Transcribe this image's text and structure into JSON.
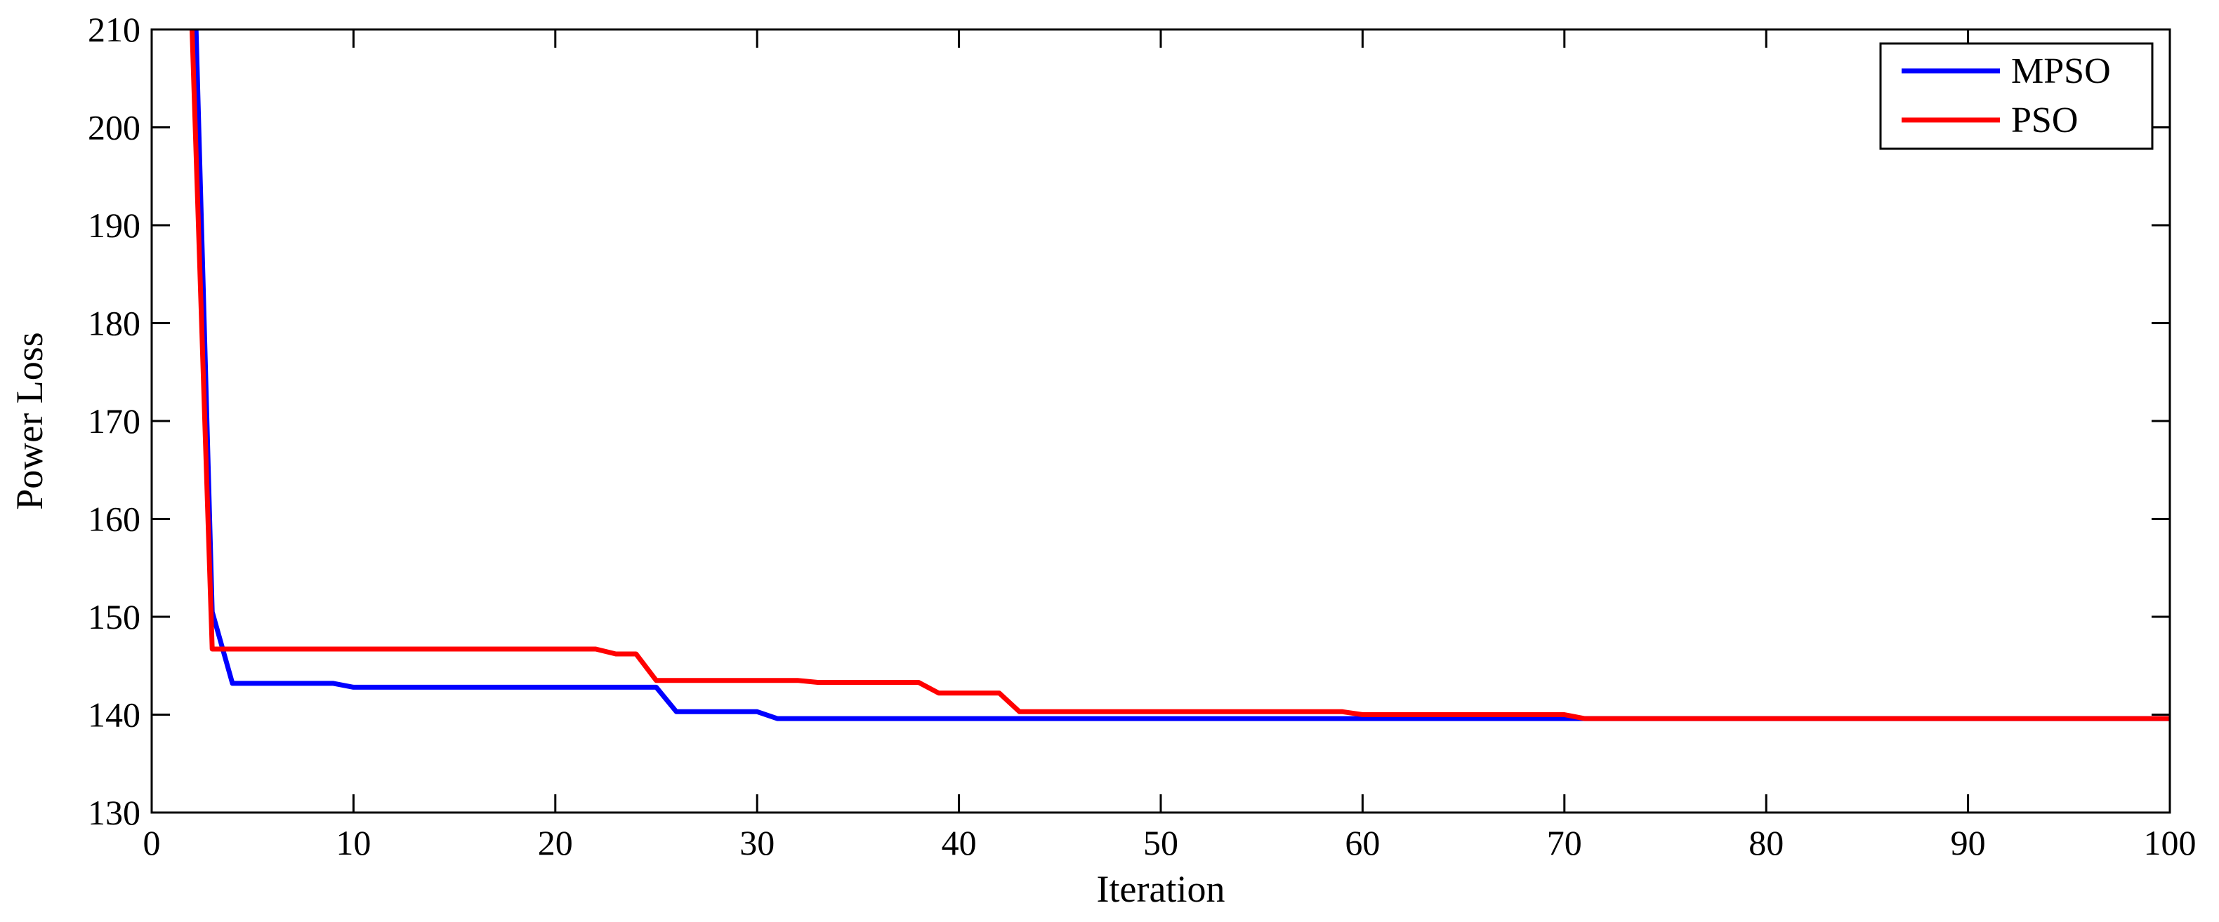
{
  "chart_data": {
    "type": "line",
    "title": "",
    "xlabel": "Iteration",
    "ylabel": "Power Loss",
    "xlim": [
      0,
      100
    ],
    "ylim": [
      130,
      210
    ],
    "xticks": [
      0,
      10,
      20,
      30,
      40,
      50,
      60,
      70,
      80,
      90,
      100
    ],
    "yticks": [
      130,
      140,
      150,
      160,
      170,
      180,
      190,
      200,
      210
    ],
    "grid": false,
    "legend": "top-right",
    "series": [
      {
        "name": "MPSO",
        "color": "#0000ff",
        "x": [
          2.2,
          3,
          4,
          9,
          10,
          25,
          26,
          30,
          31,
          100
        ],
        "y": [
          210,
          150.5,
          143.2,
          143.2,
          142.8,
          142.8,
          140.3,
          140.3,
          139.6,
          139.6
        ]
      },
      {
        "name": "PSO",
        "color": "#ff0000",
        "x": [
          2,
          3,
          22,
          23,
          24,
          25,
          32,
          33,
          38,
          39,
          42,
          43,
          59,
          60,
          70,
          71,
          100
        ],
        "y": [
          210,
          146.7,
          146.7,
          146.2,
          146.2,
          143.5,
          143.5,
          143.3,
          143.3,
          142.2,
          142.2,
          140.3,
          140.3,
          140.0,
          140.0,
          139.6,
          139.6
        ]
      }
    ]
  }
}
